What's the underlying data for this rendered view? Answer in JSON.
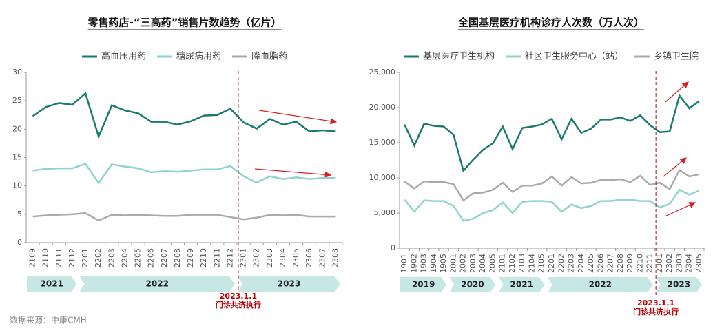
{
  "chart_data": [
    {
      "type": "line",
      "title": "零售药店-“三高药”销售片数趋势（亿片）",
      "categories": [
        "2109",
        "2110",
        "2111",
        "2112",
        "2201",
        "2202",
        "2203",
        "2204",
        "2205",
        "2206",
        "2207",
        "2208",
        "2209",
        "2210",
        "2211",
        "2212",
        "2301",
        "2302",
        "2303",
        "2304",
        "2305",
        "2306",
        "2307",
        "2308"
      ],
      "series": [
        {
          "name": "高血压用药",
          "color": "#1a7a6e",
          "values": [
            22.3,
            23.9,
            24.6,
            24.3,
            26.3,
            18.7,
            24.2,
            23.3,
            22.8,
            21.3,
            21.3,
            20.8,
            21.4,
            22.4,
            22.5,
            23.6,
            21.2,
            20.1,
            21.8,
            20.8,
            21.3,
            19.6,
            19.8,
            19.6
          ]
        },
        {
          "name": "糖尿病用药",
          "color": "#8fd3cc",
          "values": [
            12.7,
            13.0,
            13.1,
            13.1,
            13.9,
            10.5,
            13.8,
            13.4,
            13.1,
            12.4,
            12.6,
            12.5,
            12.7,
            12.9,
            12.9,
            13.5,
            11.7,
            10.6,
            11.7,
            11.2,
            11.5,
            11.2,
            11.4,
            11.4
          ]
        },
        {
          "name": "降血脂药",
          "color": "#aaaaaa",
          "values": [
            4.6,
            4.8,
            4.9,
            5.0,
            5.2,
            3.9,
            4.9,
            4.8,
            4.9,
            4.8,
            4.7,
            4.7,
            4.9,
            4.9,
            4.9,
            4.5,
            4.1,
            4.4,
            4.9,
            4.8,
            4.9,
            4.6,
            4.6,
            4.6
          ]
        }
      ],
      "ylim": [
        0,
        30
      ],
      "yticks": [
        0,
        5,
        10,
        15,
        20,
        25,
        30
      ],
      "periods": [
        {
          "label": "2021",
          "from": "2109",
          "to": "2112"
        },
        {
          "label": "2022",
          "from": "2201",
          "to": "2212"
        },
        {
          "label": "2023",
          "from": "2301",
          "to": "2308"
        }
      ],
      "marker": {
        "at": "2301",
        "lines": [
          "2023.1.1",
          "门诊共济执行"
        ]
      }
    },
    {
      "type": "line",
      "title": "全国基层医疗机构诊疗人次数（万人次）",
      "categories": [
        "1901",
        "1902",
        "1903",
        "1904",
        "1905",
        "2001",
        "2002",
        "2003",
        "2004",
        "2005",
        "2101",
        "2102",
        "2103",
        "2104",
        "2105",
        "2201",
        "2202",
        "2203",
        "2204",
        "2205",
        "2206",
        "2207",
        "2208",
        "2209",
        "2210",
        "2211",
        "2301",
        "2302",
        "2303",
        "2304",
        "2305"
      ],
      "series": [
        {
          "name": "基层医疗卫生机构",
          "color": "#1a7a6e",
          "values": [
            17600,
            14600,
            17700,
            17400,
            17300,
            16100,
            11000,
            12600,
            14000,
            14900,
            17300,
            14100,
            17100,
            17300,
            17600,
            18400,
            15500,
            18400,
            16400,
            17000,
            18300,
            18300,
            18600,
            18100,
            18900,
            17500,
            16500,
            16600,
            21700,
            19900,
            20900
          ]
        },
        {
          "name": "社区卫生服务中心（站）",
          "color": "#8fd3cc",
          "values": [
            6900,
            5200,
            6800,
            6700,
            6700,
            6000,
            3900,
            4200,
            5000,
            5400,
            6500,
            5000,
            6600,
            6700,
            6700,
            6600,
            5200,
            6200,
            5700,
            6000,
            6700,
            6700,
            6900,
            6900,
            6700,
            6700,
            5800,
            6300,
            8300,
            7600,
            8200
          ]
        },
        {
          "name": "乡镇卫生院",
          "color": "#aaaaaa",
          "values": [
            9500,
            8500,
            9500,
            9400,
            9400,
            9100,
            6800,
            7800,
            7900,
            8300,
            9300,
            8000,
            8900,
            8900,
            9200,
            10200,
            8900,
            10100,
            9200,
            9300,
            9700,
            9700,
            9800,
            9400,
            10300,
            9000,
            9300,
            8400,
            11100,
            10200,
            10500
          ]
        }
      ],
      "ylim": [
        0,
        25000
      ],
      "yticks": [
        0,
        {
          "value": 5000,
          "label": "5,000"
        },
        {
          "value": 10000,
          "label": "10,000"
        },
        {
          "value": 15000,
          "label": "15,000"
        },
        {
          "value": 20000,
          "label": "20,000"
        },
        {
          "value": 25000,
          "label": "25,000"
        }
      ],
      "periods": [
        {
          "label": "2019",
          "from": "1901",
          "to": "1905"
        },
        {
          "label": "2020",
          "from": "2001",
          "to": "2005"
        },
        {
          "label": "2021",
          "from": "2101",
          "to": "2105"
        },
        {
          "label": "2022",
          "from": "2201",
          "to": "2211"
        },
        {
          "label": "2023",
          "from": "2301",
          "to": "2305"
        }
      ],
      "marker": {
        "at": "2301",
        "lines": [
          "2023.1.1",
          "门诊共济执行"
        ]
      }
    }
  ],
  "source": "数据来源：中康CMH"
}
